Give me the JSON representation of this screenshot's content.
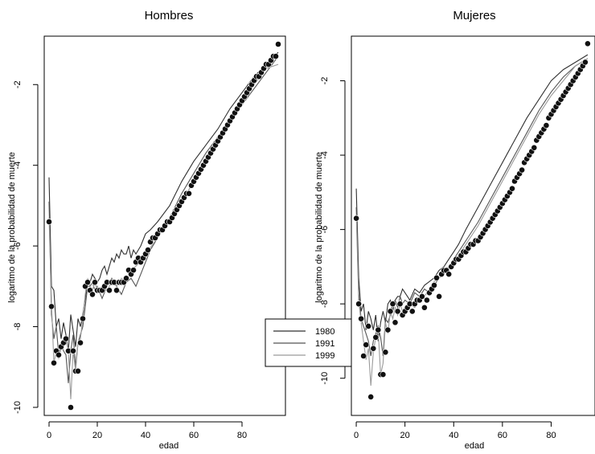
{
  "chart_data": [
    {
      "type": "scatter",
      "title": "Hombres",
      "xlabel": "edad",
      "ylabel": "logaritmo  de la probabilidad de muerte",
      "xlim": [
        -2,
        98
      ],
      "ylim": [
        -10.2,
        -0.8
      ],
      "xticks": [
        0,
        20,
        40,
        60,
        80
      ],
      "yticks": [
        -10,
        -8,
        -6,
        -4,
        -2
      ],
      "xtick_labels": [
        "0",
        "20",
        "40",
        "60",
        "80"
      ],
      "ytick_labels": [
        "-10",
        "-8",
        "-6",
        "-4",
        "-2"
      ],
      "line_series": [
        {
          "name": "1980",
          "color": "#303030",
          "x": [
            0,
            1,
            2,
            3,
            4,
            5,
            6,
            7,
            8,
            9,
            10,
            11,
            12,
            13,
            14,
            15,
            16,
            17,
            18,
            19,
            20,
            21,
            22,
            23,
            24,
            25,
            26,
            27,
            28,
            29,
            30,
            31,
            32,
            33,
            34,
            35,
            36,
            38,
            40,
            42,
            45,
            50,
            55,
            60,
            65,
            70,
            75,
            80,
            85,
            90,
            95
          ],
          "y": [
            -4.3,
            -7.0,
            -7.1,
            -8.0,
            -7.8,
            -8.3,
            -7.9,
            -8.2,
            -8.6,
            -7.7,
            -8.1,
            -8.5,
            -7.8,
            -8.0,
            -7.7,
            -7.3,
            -6.9,
            -6.9,
            -6.7,
            -6.8,
            -6.9,
            -6.8,
            -6.6,
            -6.5,
            -6.7,
            -6.5,
            -6.3,
            -6.4,
            -6.2,
            -6.3,
            -6.1,
            -6.2,
            -6.2,
            -6.0,
            -6.3,
            -6.1,
            -6.2,
            -6.0,
            -5.7,
            -5.6,
            -5.4,
            -5.0,
            -4.4,
            -3.9,
            -3.5,
            -3.1,
            -2.6,
            -2.2,
            -1.8,
            -1.5,
            -1.2
          ]
        },
        {
          "name": "1991",
          "color": "#555555",
          "x": [
            0,
            1,
            2,
            3,
            4,
            5,
            6,
            7,
            8,
            9,
            10,
            11,
            12,
            13,
            14,
            15,
            16,
            17,
            18,
            19,
            20,
            22,
            24,
            26,
            28,
            30,
            32,
            34,
            36,
            38,
            40,
            42,
            45,
            50,
            55,
            60,
            65,
            70,
            75,
            80,
            85,
            90,
            95
          ],
          "y": [
            -4.9,
            -7.7,
            -8.3,
            -8.0,
            -8.7,
            -8.4,
            -8.6,
            -8.7,
            -9.4,
            -8.6,
            -8.2,
            -9.0,
            -8.4,
            -8.2,
            -8.0,
            -7.5,
            -7.0,
            -7.0,
            -6.9,
            -7.1,
            -7.0,
            -7.3,
            -7.0,
            -6.8,
            -7.0,
            -7.2,
            -6.9,
            -6.8,
            -7.0,
            -6.7,
            -6.4,
            -6.1,
            -5.8,
            -5.3,
            -4.7,
            -4.2,
            -3.7,
            -3.3,
            -2.9,
            -2.5,
            -2.1,
            -1.7,
            -1.3
          ]
        },
        {
          "name": "1999",
          "color": "#9a9a9a",
          "x": [
            0,
            1,
            2,
            3,
            4,
            5,
            6,
            7,
            8,
            9,
            10,
            11,
            12,
            13,
            14,
            15,
            16,
            17,
            18,
            19,
            20,
            22,
            24,
            26,
            28,
            30,
            32,
            34,
            36,
            38,
            40,
            45,
            50,
            55,
            60,
            65,
            70,
            75,
            80,
            85,
            90,
            95
          ],
          "y": [
            -5.3,
            -7.4,
            -8.9,
            -8.6,
            -8.8,
            -8.5,
            -8.4,
            -8.3,
            -8.6,
            -9.8,
            -8.6,
            -9.1,
            -8.4,
            -8.3,
            -7.8,
            -7.2,
            -6.8,
            -7.0,
            -7.1,
            -6.9,
            -7.1,
            -7.0,
            -7.1,
            -6.9,
            -7.0,
            -6.8,
            -6.9,
            -6.6,
            -6.5,
            -6.4,
            -6.2,
            -5.8,
            -5.3,
            -4.9,
            -4.4,
            -3.9,
            -3.4,
            -2.9,
            -2.5,
            -2.0,
            -1.6,
            -1.5
          ]
        }
      ],
      "points": {
        "x": [
          0,
          1,
          2,
          3,
          4,
          5,
          6,
          7,
          8,
          9,
          10,
          11,
          12,
          13,
          14,
          15,
          16,
          17,
          18,
          19,
          20,
          21,
          22,
          23,
          24,
          25,
          26,
          27,
          28,
          29,
          30,
          31,
          32,
          33,
          34,
          35,
          36,
          37,
          38,
          39,
          40,
          41,
          42,
          43,
          44,
          45,
          46,
          47,
          48,
          49,
          50,
          51,
          52,
          53,
          54,
          55,
          56,
          57,
          58,
          59,
          60,
          61,
          62,
          63,
          64,
          65,
          66,
          67,
          68,
          69,
          70,
          71,
          72,
          73,
          74,
          75,
          76,
          77,
          78,
          79,
          80,
          81,
          82,
          83,
          84,
          85,
          86,
          87,
          88,
          89,
          90,
          91,
          92,
          93,
          94,
          95
        ],
        "y": [
          -5.4,
          -7.5,
          -8.9,
          -8.6,
          -8.7,
          -8.5,
          -8.4,
          -8.3,
          -8.6,
          -10.0,
          -8.6,
          -9.1,
          -9.1,
          -8.4,
          -7.8,
          -7.0,
          -6.9,
          -7.1,
          -7.2,
          -6.9,
          -7.1,
          -7.1,
          -7.1,
          -7.0,
          -6.9,
          -7.1,
          -6.9,
          -6.9,
          -7.1,
          -6.9,
          -6.9,
          -6.9,
          -6.8,
          -6.6,
          -6.7,
          -6.6,
          -6.4,
          -6.3,
          -6.4,
          -6.3,
          -6.2,
          -6.1,
          -5.9,
          -5.8,
          -5.8,
          -5.7,
          -5.6,
          -5.6,
          -5.5,
          -5.4,
          -5.4,
          -5.3,
          -5.2,
          -5.1,
          -5.0,
          -4.9,
          -4.8,
          -4.7,
          -4.7,
          -4.5,
          -4.4,
          -4.3,
          -4.2,
          -4.1,
          -4.0,
          -3.9,
          -3.8,
          -3.7,
          -3.6,
          -3.5,
          -3.4,
          -3.3,
          -3.2,
          -3.1,
          -3.0,
          -2.9,
          -2.8,
          -2.7,
          -2.6,
          -2.5,
          -2.4,
          -2.3,
          -2.2,
          -2.1,
          -2.0,
          -1.9,
          -1.8,
          -1.8,
          -1.7,
          -1.6,
          -1.5,
          -1.5,
          -1.4,
          -1.3,
          -1.3,
          -1.0
        ]
      }
    },
    {
      "type": "scatter",
      "title": "Mujeres",
      "xlabel": "edad",
      "ylabel": "logaritmo  de la probabilidad de muerte",
      "xlim": [
        -2,
        98
      ],
      "ylim": [
        -11.0,
        -0.8
      ],
      "xticks": [
        0,
        20,
        40,
        60,
        80
      ],
      "yticks": [
        -10,
        -8,
        -6,
        -4,
        -2
      ],
      "xtick_labels": [
        "0",
        "20",
        "40",
        "60",
        "80"
      ],
      "ytick_labels": [
        "-10",
        "-8",
        "-6",
        "-4",
        "-2"
      ],
      "line_series": [
        {
          "name": "1980",
          "color": "#303030",
          "x": [
            0,
            1,
            2,
            3,
            4,
            5,
            6,
            7,
            8,
            9,
            10,
            11,
            12,
            13,
            14,
            15,
            16,
            17,
            18,
            19,
            20,
            22,
            24,
            26,
            28,
            30,
            32,
            34,
            36,
            38,
            40,
            42,
            45,
            50,
            55,
            60,
            65,
            70,
            75,
            80,
            85,
            90,
            95
          ],
          "y": [
            -4.9,
            -7.3,
            -8.2,
            -8.0,
            -8.7,
            -8.2,
            -8.4,
            -8.7,
            -8.3,
            -9.0,
            -8.5,
            -8.2,
            -8.5,
            -8.0,
            -7.9,
            -8.2,
            -7.9,
            -7.8,
            -7.8,
            -7.6,
            -7.7,
            -7.9,
            -7.6,
            -7.7,
            -7.5,
            -7.4,
            -7.3,
            -7.1,
            -7.0,
            -6.8,
            -6.6,
            -6.4,
            -6.0,
            -5.4,
            -4.8,
            -4.2,
            -3.6,
            -3.0,
            -2.5,
            -2.0,
            -1.7,
            -1.5,
            -1.3
          ]
        },
        {
          "name": "1991",
          "color": "#555555",
          "x": [
            0,
            1,
            2,
            3,
            4,
            5,
            6,
            7,
            8,
            9,
            10,
            11,
            12,
            13,
            14,
            15,
            16,
            17,
            18,
            19,
            20,
            22,
            24,
            26,
            28,
            30,
            32,
            34,
            36,
            38,
            40,
            42,
            45,
            50,
            55,
            60,
            65,
            70,
            75,
            80,
            85,
            90,
            95
          ],
          "y": [
            -5.4,
            -7.7,
            -8.4,
            -8.6,
            -8.8,
            -9.0,
            -9.4,
            -9.0,
            -8.8,
            -8.6,
            -8.9,
            -9.4,
            -8.4,
            -8.5,
            -8.3,
            -8.0,
            -7.9,
            -8.1,
            -7.8,
            -8.0,
            -7.9,
            -8.0,
            -7.7,
            -7.8,
            -7.6,
            -7.7,
            -7.5,
            -7.3,
            -7.2,
            -7.0,
            -6.8,
            -6.6,
            -6.3,
            -5.8,
            -5.2,
            -4.6,
            -4.0,
            -3.4,
            -2.8,
            -2.3,
            -1.9,
            -1.6,
            -1.4
          ]
        },
        {
          "name": "1999",
          "color": "#9a9a9a",
          "x": [
            0,
            1,
            2,
            3,
            4,
            5,
            6,
            7,
            8,
            9,
            10,
            11,
            12,
            13,
            14,
            15,
            16,
            17,
            18,
            19,
            20,
            22,
            24,
            26,
            28,
            30,
            32,
            34,
            36,
            38,
            40,
            45,
            50,
            55,
            60,
            65,
            70,
            75,
            80,
            85,
            90,
            95
          ],
          "y": [
            -5.6,
            -7.9,
            -8.5,
            -9.0,
            -9.5,
            -9.2,
            -10.2,
            -9.3,
            -8.9,
            -8.7,
            -9.9,
            -9.6,
            -8.5,
            -8.8,
            -8.2,
            -8.4,
            -8.1,
            -8.3,
            -8.0,
            -8.2,
            -8.1,
            -8.0,
            -8.1,
            -7.9,
            -7.8,
            -7.6,
            -7.4,
            -7.3,
            -7.1,
            -7.0,
            -6.9,
            -6.4,
            -5.9,
            -5.3,
            -4.7,
            -4.1,
            -3.5,
            -2.9,
            -2.4,
            -2.0,
            -1.6,
            -1.4
          ]
        }
      ],
      "points": {
        "x": [
          0,
          1,
          2,
          3,
          4,
          5,
          6,
          7,
          8,
          9,
          10,
          11,
          12,
          13,
          14,
          15,
          16,
          17,
          18,
          19,
          20,
          21,
          22,
          23,
          24,
          25,
          26,
          27,
          28,
          29,
          30,
          31,
          32,
          33,
          34,
          35,
          36,
          37,
          38,
          39,
          40,
          41,
          42,
          43,
          44,
          45,
          46,
          47,
          48,
          49,
          50,
          51,
          52,
          53,
          54,
          55,
          56,
          57,
          58,
          59,
          60,
          61,
          62,
          63,
          64,
          65,
          66,
          67,
          68,
          69,
          70,
          71,
          72,
          73,
          74,
          75,
          76,
          77,
          78,
          79,
          80,
          81,
          82,
          83,
          84,
          85,
          86,
          87,
          88,
          89,
          90,
          91,
          92,
          93,
          94,
          95
        ],
        "y": [
          -5.7,
          -8.0,
          -8.4,
          -9.4,
          -9.1,
          -8.6,
          -10.5,
          -9.2,
          -8.9,
          -8.7,
          -9.9,
          -9.9,
          -9.3,
          -8.7,
          -8.2,
          -8.0,
          -8.5,
          -8.2,
          -8.0,
          -8.3,
          -8.2,
          -8.1,
          -8.0,
          -8.2,
          -8.0,
          -7.9,
          -7.9,
          -7.8,
          -8.1,
          -7.9,
          -7.7,
          -7.6,
          -7.5,
          -7.3,
          -7.8,
          -7.2,
          -7.1,
          -7.1,
          -7.2,
          -7.0,
          -6.9,
          -6.8,
          -6.8,
          -6.7,
          -6.6,
          -6.6,
          -6.5,
          -6.4,
          -6.4,
          -6.3,
          -6.3,
          -6.2,
          -6.1,
          -6.0,
          -5.9,
          -5.8,
          -5.7,
          -5.6,
          -5.5,
          -5.4,
          -5.3,
          -5.2,
          -5.1,
          -5.0,
          -4.9,
          -4.7,
          -4.6,
          -4.5,
          -4.4,
          -4.2,
          -4.1,
          -4.0,
          -3.9,
          -3.8,
          -3.6,
          -3.5,
          -3.4,
          -3.3,
          -3.2,
          -3.0,
          -2.9,
          -2.8,
          -2.7,
          -2.6,
          -2.5,
          -2.4,
          -2.3,
          -2.2,
          -2.1,
          -2.0,
          -1.9,
          -1.8,
          -1.7,
          -1.6,
          -1.5,
          -1.0
        ]
      }
    }
  ],
  "legend": {
    "placement": "between-panels",
    "entries": [
      {
        "name": "1980",
        "color": "#303030"
      },
      {
        "name": "1991",
        "color": "#555555"
      },
      {
        "name": "1999",
        "color": "#9a9a9a"
      }
    ]
  }
}
